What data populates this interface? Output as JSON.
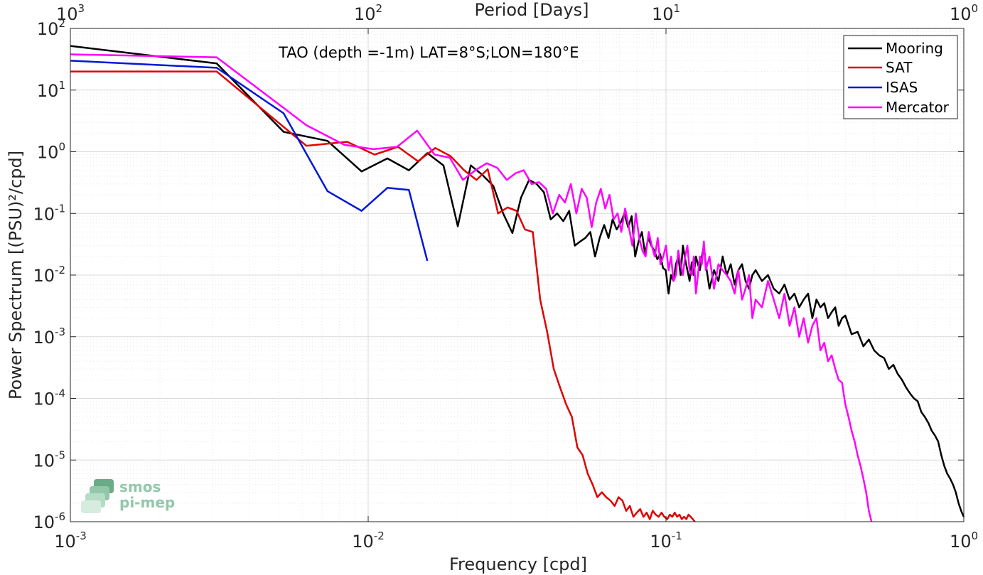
{
  "colors": {
    "mooring": "#000000",
    "sat": "#e00000",
    "isas": "#0018d8",
    "mercator": "#ff00ff"
  },
  "logo": {
    "line1": "smos",
    "line2": "pi-mep"
  },
  "chart_data": {
    "type": "line",
    "title": "TAO (depth =-1m) LAT=8°S;LON=180°E",
    "xlabel": "Frequency [cpd]",
    "x2label": "Period [Days]",
    "ylabel": "Power Spectrum [(PSU)²/cpd]",
    "xscale": "log",
    "yscale": "log",
    "xlim": [
      0.001,
      1
    ],
    "ylim": [
      1e-06,
      100
    ],
    "grid": true,
    "legend_position": "top-right",
    "x_ticks": [
      {
        "v": 0.001,
        "base": "10",
        "exp": "-3"
      },
      {
        "v": 0.01,
        "base": "10",
        "exp": "-2"
      },
      {
        "v": 0.1,
        "base": "10",
        "exp": "-1"
      },
      {
        "v": 1,
        "base": "10",
        "exp": "0"
      }
    ],
    "x2_ticks": [
      {
        "v": 0.001,
        "base": "10",
        "exp": "3"
      },
      {
        "v": 0.01,
        "base": "10",
        "exp": "2"
      },
      {
        "v": 0.1,
        "base": "10",
        "exp": "1"
      },
      {
        "v": 1,
        "base": "10",
        "exp": "0"
      }
    ],
    "y_ticks": [
      {
        "v": 100,
        "base": "10",
        "exp": "2"
      },
      {
        "v": 10,
        "base": "10",
        "exp": "1"
      },
      {
        "v": 1,
        "base": "10",
        "exp": "0"
      },
      {
        "v": 0.1,
        "base": "10",
        "exp": "-1"
      },
      {
        "v": 0.01,
        "base": "10",
        "exp": "-2"
      },
      {
        "v": 0.001,
        "base": "10",
        "exp": "-3"
      },
      {
        "v": 0.0001,
        "base": "10",
        "exp": "-4"
      },
      {
        "v": 1e-05,
        "base": "10",
        "exp": "-5"
      },
      {
        "v": 1e-06,
        "base": "10",
        "exp": "-6"
      }
    ],
    "series": [
      {
        "name": "Mooring",
        "color_key": "mooring",
        "x": [
          0.001,
          0.0031,
          0.0052,
          0.0073,
          0.0095,
          0.0116,
          0.0137,
          0.0158,
          0.0179,
          0.02,
          0.0221,
          0.0242,
          0.0263,
          0.0284,
          0.0305,
          0.0326,
          0.0347,
          0.0368,
          0.0389,
          0.041,
          0.0431,
          0.0452,
          0.0473,
          0.0494,
          0.0515,
          0.0536,
          0.0557,
          0.0578,
          0.0599,
          0.062,
          0.0641,
          0.0662,
          0.0683,
          0.0704,
          0.0725,
          0.0746,
          0.0767,
          0.0788,
          0.0809,
          0.083,
          0.0851,
          0.0872,
          0.0893,
          0.0914,
          0.0935,
          0.0956,
          0.0977,
          0.0998,
          0.102,
          0.104,
          0.106,
          0.108,
          0.11,
          0.112,
          0.114,
          0.116,
          0.118,
          0.12,
          0.122,
          0.124,
          0.126,
          0.128,
          0.13,
          0.132,
          0.134,
          0.136,
          0.14,
          0.145,
          0.15,
          0.155,
          0.16,
          0.165,
          0.17,
          0.175,
          0.18,
          0.185,
          0.19,
          0.195,
          0.2,
          0.21,
          0.22,
          0.23,
          0.24,
          0.25,
          0.26,
          0.27,
          0.28,
          0.29,
          0.3,
          0.31,
          0.32,
          0.33,
          0.34,
          0.35,
          0.36,
          0.37,
          0.38,
          0.39,
          0.4,
          0.42,
          0.44,
          0.46,
          0.48,
          0.5,
          0.52,
          0.54,
          0.56,
          0.58,
          0.6,
          0.62,
          0.64,
          0.66,
          0.68,
          0.7,
          0.72,
          0.74,
          0.76,
          0.78,
          0.8,
          0.82,
          0.84,
          0.86,
          0.88,
          0.9,
          0.92,
          0.94,
          0.96,
          0.98,
          1.0
        ],
        "y": [
          52,
          27,
          2.1,
          1.5,
          0.48,
          0.78,
          0.5,
          0.95,
          0.6,
          0.062,
          0.6,
          0.42,
          0.28,
          0.1,
          0.048,
          0.18,
          0.35,
          0.3,
          0.22,
          0.08,
          0.1,
          0.075,
          0.11,
          0.03,
          0.035,
          0.04,
          0.05,
          0.02,
          0.04,
          0.065,
          0.04,
          0.08,
          0.055,
          0.07,
          0.1,
          0.06,
          0.09,
          0.02,
          0.035,
          0.05,
          0.022,
          0.04,
          0.03,
          0.025,
          0.018,
          0.022,
          0.013,
          0.012,
          0.005,
          0.01,
          0.008,
          0.015,
          0.02,
          0.01,
          0.03,
          0.018,
          0.012,
          0.008,
          0.016,
          0.01,
          0.02,
          0.015,
          0.012,
          0.02,
          0.03,
          0.015,
          0.006,
          0.012,
          0.008,
          0.02,
          0.01,
          0.015,
          0.007,
          0.012,
          0.015,
          0.008,
          0.006,
          0.01,
          0.012,
          0.008,
          0.01,
          0.006,
          0.005,
          0.007,
          0.004,
          0.005,
          0.003,
          0.004,
          0.005,
          0.002,
          0.004,
          0.003,
          0.0035,
          0.002,
          0.0025,
          0.003,
          0.0015,
          0.002,
          0.0022,
          0.0011,
          0.0012,
          0.0007,
          0.0009,
          0.0006,
          0.0005,
          0.00045,
          0.0003,
          0.00035,
          0.00025,
          0.0002,
          0.00015,
          0.00012,
          0.0001,
          9e-05,
          6e-05,
          5e-05,
          4e-05,
          3e-05,
          2.5e-05,
          2e-05,
          1.2e-05,
          8e-06,
          6e-06,
          5e-06,
          4e-06,
          3e-06,
          2e-06,
          1.5e-06,
          1.2e-06
        ]
      },
      {
        "name": "SAT",
        "color_key": "sat",
        "x": [
          0.001,
          0.0031,
          0.0062,
          0.0085,
          0.0105,
          0.0126,
          0.0147,
          0.0168,
          0.0189,
          0.021,
          0.0231,
          0.0252,
          0.0273,
          0.0294,
          0.0315,
          0.0336,
          0.0357,
          0.0378,
          0.0399,
          0.042,
          0.0441,
          0.0462,
          0.0483,
          0.0504,
          0.0525,
          0.0546,
          0.0567,
          0.0588,
          0.0609,
          0.063,
          0.0651,
          0.0672,
          0.0693,
          0.0714,
          0.0735,
          0.0756,
          0.0777,
          0.0798,
          0.0819,
          0.084,
          0.0861,
          0.0882,
          0.0903,
          0.0924,
          0.0945,
          0.0966,
          0.0987,
          0.101,
          0.103,
          0.105,
          0.107,
          0.109,
          0.111,
          0.113,
          0.115,
          0.117,
          0.119,
          0.121,
          0.123,
          0.125
        ],
        "y": [
          20,
          20,
          1.25,
          1.45,
          0.9,
          1.2,
          0.7,
          1.15,
          0.85,
          0.5,
          0.35,
          0.52,
          0.1,
          0.125,
          0.11,
          0.055,
          0.05,
          0.004,
          0.0012,
          0.0003,
          0.00015,
          8e-05,
          5e-05,
          1.6e-05,
          1.2e-05,
          6e-06,
          4e-06,
          2.5e-06,
          3e-06,
          2.5e-06,
          2.2e-06,
          1.8e-06,
          2.5e-06,
          2.2e-06,
          1.5e-06,
          1.8e-06,
          1.2e-06,
          1.4e-06,
          1.6e-06,
          1.2e-06,
          1.4e-06,
          1.1e-06,
          1.5e-06,
          1.3e-06,
          1.2e-06,
          1.4e-06,
          1.2e-06,
          1.1e-06,
          1.3e-06,
          1.2e-06,
          1.4e-06,
          1.2e-06,
          1.3e-06,
          1.1e-06,
          1.2e-06,
          1.1e-06,
          1.3e-06,
          1.2e-06,
          1.1e-06,
          1e-06
        ]
      },
      {
        "name": "ISAS",
        "color_key": "isas",
        "x": [
          0.001,
          0.0031,
          0.0052,
          0.0073,
          0.0095,
          0.0116,
          0.0137,
          0.0158
        ],
        "y": [
          30,
          23,
          4.2,
          0.23,
          0.11,
          0.26,
          0.24,
          0.017
        ]
      },
      {
        "name": "Mercator",
        "color_key": "mercator",
        "x": [
          0.001,
          0.0031,
          0.0062,
          0.0083,
          0.0104,
          0.0125,
          0.0146,
          0.0167,
          0.0188,
          0.0208,
          0.0229,
          0.025,
          0.0271,
          0.0292,
          0.0313,
          0.0333,
          0.0354,
          0.0375,
          0.0396,
          0.0417,
          0.0438,
          0.0458,
          0.0479,
          0.05,
          0.0521,
          0.0542,
          0.0563,
          0.0583,
          0.0604,
          0.0625,
          0.0646,
          0.0667,
          0.0688,
          0.0708,
          0.0729,
          0.075,
          0.0771,
          0.0792,
          0.0813,
          0.0833,
          0.0854,
          0.0875,
          0.0896,
          0.0917,
          0.0938,
          0.0958,
          0.0979,
          0.1,
          0.102,
          0.104,
          0.106,
          0.108,
          0.11,
          0.112,
          0.114,
          0.116,
          0.118,
          0.12,
          0.122,
          0.124,
          0.126,
          0.128,
          0.13,
          0.132,
          0.134,
          0.136,
          0.14,
          0.145,
          0.15,
          0.155,
          0.16,
          0.165,
          0.17,
          0.175,
          0.18,
          0.185,
          0.19,
          0.195,
          0.2,
          0.21,
          0.22,
          0.23,
          0.24,
          0.25,
          0.26,
          0.27,
          0.28,
          0.29,
          0.3,
          0.31,
          0.32,
          0.33,
          0.34,
          0.35,
          0.36,
          0.37,
          0.38,
          0.39,
          0.4,
          0.41,
          0.42,
          0.43,
          0.44,
          0.45,
          0.46,
          0.47,
          0.48,
          0.49
        ],
        "y": [
          38,
          34,
          2.7,
          1.3,
          1.1,
          1.2,
          2.2,
          0.9,
          0.8,
          0.35,
          0.5,
          0.65,
          0.55,
          0.35,
          0.45,
          0.5,
          0.3,
          0.32,
          0.25,
          0.1,
          0.2,
          0.15,
          0.3,
          0.1,
          0.25,
          0.18,
          0.06,
          0.15,
          0.25,
          0.12,
          0.2,
          0.08,
          0.1,
          0.05,
          0.12,
          0.06,
          0.03,
          0.1,
          0.04,
          0.025,
          0.02,
          0.05,
          0.03,
          0.02,
          0.04,
          0.015,
          0.02,
          0.03,
          0.012,
          0.02,
          0.008,
          0.01,
          0.025,
          0.015,
          0.01,
          0.02,
          0.03,
          0.012,
          0.01,
          0.02,
          0.005,
          0.01,
          0.02,
          0.015,
          0.035,
          0.012,
          0.02,
          0.006,
          0.015,
          0.012,
          0.01,
          0.008,
          0.005,
          0.012,
          0.004,
          0.006,
          0.01,
          0.002,
          0.004,
          0.003,
          0.008,
          0.004,
          0.002,
          0.005,
          0.0015,
          0.003,
          0.001,
          0.002,
          0.0008,
          0.0015,
          0.002,
          0.0006,
          0.0008,
          0.0004,
          0.0005,
          0.0003,
          0.0002,
          0.00018,
          8e-05,
          5e-05,
          3e-05,
          2e-05,
          1.2e-05,
          8e-06,
          5e-06,
          3e-06,
          1.5e-06,
          1e-06
        ]
      }
    ]
  }
}
